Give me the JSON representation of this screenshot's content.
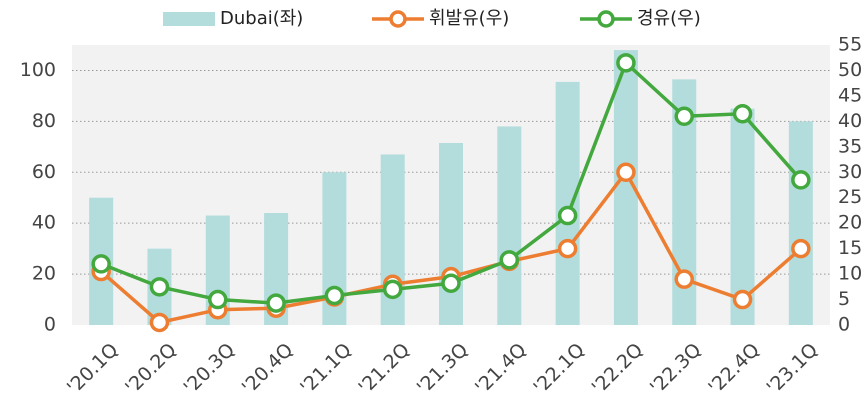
{
  "chart_data": {
    "type": "bar",
    "categories": [
      "'20.1Q",
      "'20.2Q",
      "'20.3Q",
      "'20.4Q",
      "'21.1Q",
      "'21.2Q",
      "'21.3Q",
      "'21.4Q",
      "'22.1Q",
      "'22.2Q",
      "'22.3Q",
      "'22.4Q",
      "'23.1Q"
    ],
    "series": [
      {
        "name": "Dubai(좌)",
        "type": "bar",
        "axis": "y",
        "color": "#b3dcdc",
        "values": [
          50,
          30,
          43,
          44,
          60,
          67,
          71.5,
          78,
          95.5,
          108,
          96.5,
          85,
          80
        ]
      },
      {
        "name": "휘발유(우)",
        "type": "line",
        "axis": "y2",
        "color": "#ed7d31",
        "values": [
          10.5,
          0.5,
          3,
          3.3,
          5.5,
          8,
          9.5,
          12.5,
          15,
          30,
          9,
          5,
          15
        ]
      },
      {
        "name": "경유(우)",
        "type": "line",
        "axis": "y2",
        "color": "#43a83d",
        "values": [
          12,
          7.5,
          5,
          4.3,
          5.8,
          7,
          8.2,
          12.8,
          21.5,
          51.5,
          41,
          41.5,
          28.5
        ]
      }
    ],
    "ylim": [
      0,
      110
    ],
    "yticks": [
      0,
      20,
      40,
      60,
      80,
      100
    ],
    "y2lim": [
      0,
      55
    ],
    "y2ticks": [
      0,
      5,
      10,
      15,
      20,
      25,
      30,
      35,
      40,
      45,
      50,
      55
    ],
    "grid": true,
    "legend": "top"
  }
}
